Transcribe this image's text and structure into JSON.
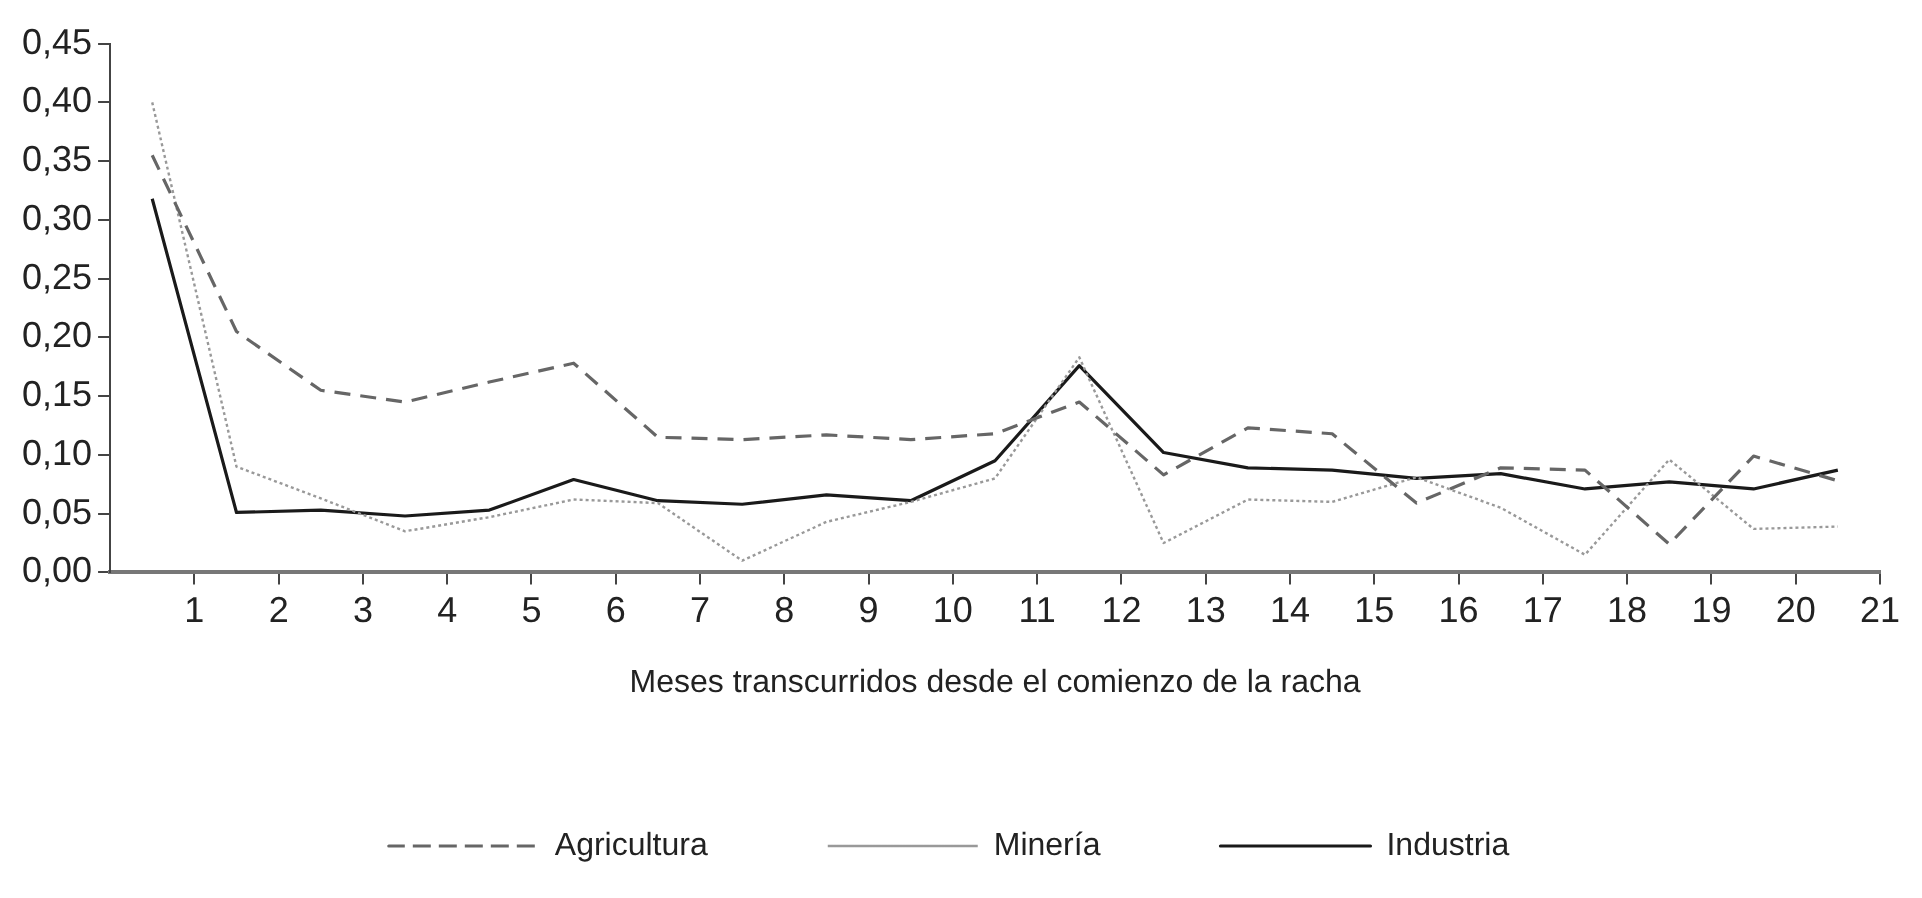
{
  "chart_data": {
    "type": "line",
    "xlabel": "Meses transcurridos desde el comienzo de la racha",
    "x": [
      0.5,
      1.5,
      2.5,
      3.5,
      4.5,
      5.5,
      6.5,
      7.5,
      8.5,
      9.5,
      10.5,
      11.5,
      12.5,
      13.5,
      14.5,
      15.5,
      16.5,
      17.5,
      18.5,
      19.5,
      20.5
    ],
    "series": [
      {
        "name": "Agricultura",
        "color": "#666666",
        "line_style": "dashed",
        "values": [
          0.355,
          0.205,
          0.155,
          0.145,
          0.162,
          0.178,
          0.115,
          0.113,
          0.117,
          0.113,
          0.118,
          0.145,
          0.083,
          0.123,
          0.118,
          0.059,
          0.089,
          0.087,
          0.024,
          0.099,
          0.078
        ]
      },
      {
        "name": "Minería",
        "color": "#999999",
        "line_style": "dotted",
        "values": [
          0.4,
          0.09,
          0.063,
          0.035,
          0.047,
          0.062,
          0.059,
          0.01,
          0.043,
          0.06,
          0.08,
          0.183,
          0.025,
          0.062,
          0.06,
          0.081,
          0.055,
          0.015,
          0.096,
          0.037,
          0.039
        ]
      },
      {
        "name": "Industria",
        "color": "#1a1a1a",
        "line_style": "solid",
        "values": [
          0.318,
          0.051,
          0.053,
          0.048,
          0.053,
          0.079,
          0.061,
          0.058,
          0.066,
          0.061,
          0.095,
          0.176,
          0.102,
          0.089,
          0.087,
          0.08,
          0.084,
          0.071,
          0.077,
          0.071,
          0.087
        ]
      }
    ],
    "xlim": [
      0,
      21
    ],
    "xticks": [
      1,
      2,
      3,
      4,
      5,
      6,
      7,
      8,
      9,
      10,
      11,
      12,
      13,
      14,
      15,
      16,
      17,
      18,
      19,
      20,
      21
    ],
    "ylim": [
      0,
      0.45
    ],
    "yticks": [
      {
        "value": 0,
        "label": "0,00"
      },
      {
        "value": 0.05,
        "label": "0,05"
      },
      {
        "value": 0.1,
        "label": "0,10"
      },
      {
        "value": 0.15,
        "label": "0,15"
      },
      {
        "value": 0.2,
        "label": "0,20"
      },
      {
        "value": 0.25,
        "label": "0,25"
      },
      {
        "value": 0.3,
        "label": "0,30"
      },
      {
        "value": 0.35,
        "label": "0,35"
      },
      {
        "value": 0.4,
        "label": "0,40"
      },
      {
        "value": 0.45,
        "label": "0,45"
      }
    ],
    "grid": false,
    "legend": "bottom",
    "marker": "none"
  }
}
